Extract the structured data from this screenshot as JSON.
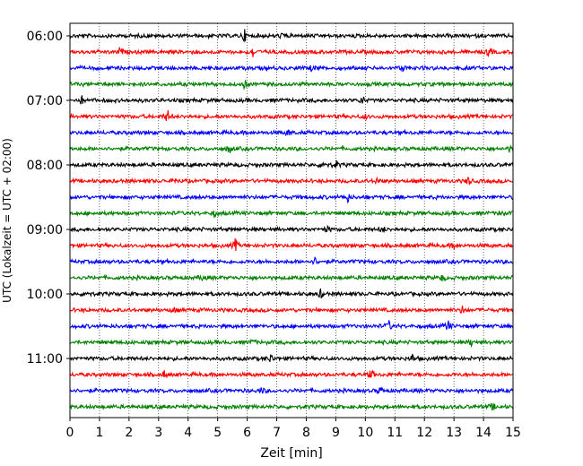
{
  "chart_data": {
    "type": "line",
    "title": "",
    "xlabel": "Zeit  [min]",
    "ylabel": "UTC (Lokalzeit = UTC + 02:00)",
    "xlim": [
      0,
      15
    ],
    "x_ticks": [
      "0",
      "1",
      "2",
      "3",
      "4",
      "5",
      "6",
      "7",
      "8",
      "9",
      "10",
      "11",
      "12",
      "13",
      "14",
      "15"
    ],
    "y_ticks": [
      "06:00",
      "07:00",
      "08:00",
      "09:00",
      "10:00",
      "11:00"
    ],
    "grid": "vertical dotted at each minute",
    "legend": "none",
    "trace_interval_minutes": 15,
    "traces_per_hour": 4,
    "series": [
      {
        "start": "06:00",
        "color": "#000000",
        "events": [
          [
            5.9,
            0.8
          ],
          [
            7.2,
            0.4
          ]
        ]
      },
      {
        "start": "06:15",
        "color": "#ff0000",
        "events": [
          [
            1.7,
            0.6
          ],
          [
            6.2,
            0.7
          ],
          [
            14.2,
            0.7
          ]
        ]
      },
      {
        "start": "06:30",
        "color": "#0000ff",
        "events": [
          [
            8.2,
            0.4
          ],
          [
            11.3,
            0.5
          ]
        ]
      },
      {
        "start": "06:45",
        "color": "#008000",
        "events": [
          [
            5.9,
            0.5
          ]
        ]
      },
      {
        "start": "07:00",
        "color": "#000000",
        "events": [
          [
            0.4,
            0.5
          ],
          [
            9.9,
            0.6
          ]
        ]
      },
      {
        "start": "07:15",
        "color": "#ff0000",
        "events": [
          [
            3.3,
            0.9
          ],
          [
            10.0,
            0.3
          ]
        ]
      },
      {
        "start": "07:30",
        "color": "#0000ff",
        "events": [
          [
            7.4,
            0.4
          ]
        ]
      },
      {
        "start": "07:45",
        "color": "#008000",
        "events": [
          [
            5.4,
            0.6
          ],
          [
            14.9,
            0.4
          ]
        ]
      },
      {
        "start": "08:00",
        "color": "#000000",
        "events": [
          [
            8.6,
            0.7
          ],
          [
            9.0,
            0.5
          ]
        ]
      },
      {
        "start": "08:15",
        "color": "#ff0000",
        "events": [
          [
            3.6,
            0.4
          ],
          [
            10.4,
            0.5
          ],
          [
            13.5,
            0.6
          ]
        ]
      },
      {
        "start": "08:30",
        "color": "#0000ff",
        "events": [
          [
            9.4,
            0.6
          ]
        ]
      },
      {
        "start": "08:45",
        "color": "#008000",
        "events": [
          [
            4.9,
            0.4
          ],
          [
            14.6,
            0.5
          ]
        ]
      },
      {
        "start": "09:00",
        "color": "#000000",
        "events": [
          [
            8.7,
            0.4
          ],
          [
            10.6,
            0.4
          ]
        ]
      },
      {
        "start": "09:15",
        "color": "#ff0000",
        "events": [
          [
            5.6,
            0.8
          ],
          [
            13.0,
            0.4
          ]
        ]
      },
      {
        "start": "09:30",
        "color": "#0000ff",
        "events": [
          [
            8.3,
            0.5
          ]
        ]
      },
      {
        "start": "09:45",
        "color": "#008000",
        "events": [
          [
            4.5,
            0.4
          ],
          [
            12.6,
            0.4
          ]
        ]
      },
      {
        "start": "10:00",
        "color": "#000000",
        "events": [
          [
            0.6,
            0.4
          ],
          [
            8.5,
            0.6
          ]
        ]
      },
      {
        "start": "10:15",
        "color": "#ff0000",
        "events": [
          [
            3.5,
            0.4
          ],
          [
            13.3,
            0.6
          ]
        ]
      },
      {
        "start": "10:30",
        "color": "#0000ff",
        "events": [
          [
            10.8,
            0.6
          ],
          [
            12.8,
            0.8
          ]
        ]
      },
      {
        "start": "10:45",
        "color": "#008000",
        "events": [
          [
            6.2,
            0.3
          ],
          [
            13.6,
            0.5
          ]
        ]
      },
      {
        "start": "11:00",
        "color": "#000000",
        "events": [
          [
            6.8,
            0.6
          ],
          [
            11.6,
            0.5
          ]
        ]
      },
      {
        "start": "11:15",
        "color": "#ff0000",
        "events": [
          [
            3.2,
            0.5
          ],
          [
            10.2,
            0.7
          ]
        ]
      },
      {
        "start": "11:30",
        "color": "#0000ff",
        "events": [
          [
            6.5,
            0.4
          ],
          [
            10.5,
            0.5
          ]
        ]
      },
      {
        "start": "11:45",
        "color": "#008000",
        "events": [
          [
            14.3,
            0.5
          ]
        ]
      }
    ]
  }
}
